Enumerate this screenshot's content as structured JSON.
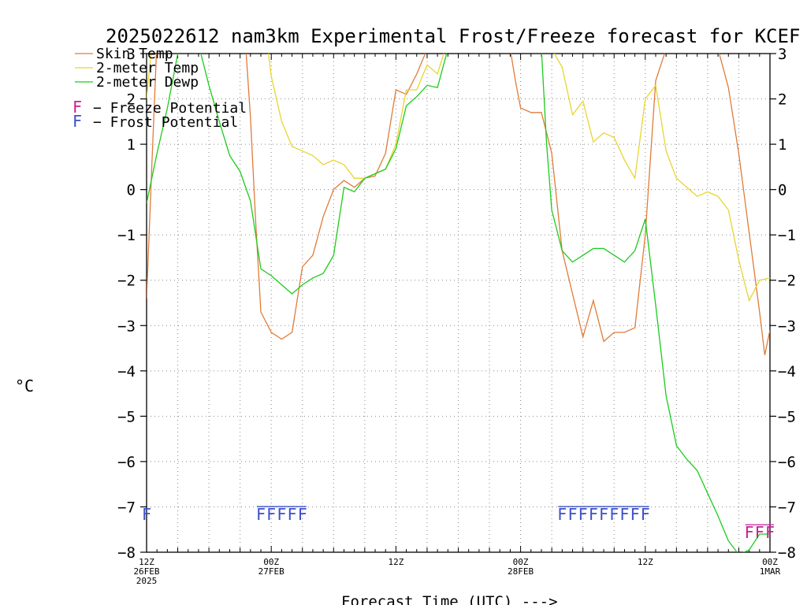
{
  "chart_data": {
    "type": "line",
    "title": "2025022612 nam3km Experimental Frost/Freeze forecast for KCEF",
    "xlabel": "Forecast Time (UTC) --->",
    "ylabel": "°C",
    "ylim": [
      -8,
      3
    ],
    "yticks": [
      3,
      2,
      1,
      0,
      -1,
      -2,
      -3,
      -4,
      -5,
      -6,
      -7,
      -8
    ],
    "xlim": [
      "2025-02-26 12Z",
      "2025-03-01 00Z"
    ],
    "x_hours_from_start": [
      0,
      60
    ],
    "xticks": [
      {
        "hour": 0,
        "lines": [
          "12Z",
          "26FEB",
          "2025"
        ]
      },
      {
        "hour": 12,
        "lines": [
          "00Z",
          "27FEB"
        ]
      },
      {
        "hour": 24,
        "lines": [
          "12Z"
        ]
      },
      {
        "hour": 36,
        "lines": [
          "00Z",
          "28FEB"
        ]
      },
      {
        "hour": 48,
        "lines": [
          "12Z"
        ]
      },
      {
        "hour": 60,
        "lines": [
          "00Z",
          "1MAR"
        ]
      }
    ],
    "grid": true,
    "legend_position": "top-left",
    "series": [
      {
        "name": "Skin Temp",
        "color": "#e07b39",
        "points": [
          [
            0,
            -2.4
          ],
          [
            0.5,
            0.5
          ],
          [
            1,
            3.3
          ],
          [
            9.5,
            3.3
          ],
          [
            10,
            1.6
          ],
          [
            10.5,
            -0.7
          ],
          [
            11,
            -2.7
          ],
          [
            12,
            -3.15
          ],
          [
            13,
            -3.3
          ],
          [
            14,
            -3.15
          ],
          [
            15,
            -1.7
          ],
          [
            16,
            -1.45
          ],
          [
            17,
            -0.6
          ],
          [
            18,
            0
          ],
          [
            19,
            0.2
          ],
          [
            20,
            0.05
          ],
          [
            21,
            0.25
          ],
          [
            22,
            0.3
          ],
          [
            23,
            0.8
          ],
          [
            24,
            2.2
          ],
          [
            25,
            2.1
          ],
          [
            26,
            2.55
          ],
          [
            27,
            3.1
          ],
          [
            35,
            3.1
          ],
          [
            35.5,
            2.4
          ],
          [
            36,
            1.8
          ],
          [
            37,
            1.7
          ],
          [
            38,
            1.7
          ],
          [
            39,
            0.8
          ],
          [
            40,
            -1.35
          ],
          [
            41,
            -2.3
          ],
          [
            42,
            -3.25
          ],
          [
            43,
            -2.45
          ],
          [
            44,
            -3.35
          ],
          [
            45,
            -3.15
          ],
          [
            46,
            -3.15
          ],
          [
            47,
            -3.05
          ],
          [
            48,
            -1.0
          ],
          [
            49,
            2.4
          ],
          [
            50,
            3.1
          ],
          [
            55,
            3.1
          ],
          [
            56,
            2.25
          ],
          [
            57,
            0.8
          ],
          [
            58,
            -0.95
          ],
          [
            59,
            -2.7
          ],
          [
            59.5,
            -3.65
          ],
          [
            60,
            -3.1
          ]
        ]
      },
      {
        "name": "2-meter Temp",
        "color": "#e8d530",
        "points": [
          [
            0,
            2.0
          ],
          [
            0.5,
            3.2
          ],
          [
            1,
            3.4
          ],
          [
            11.5,
            3.4
          ],
          [
            12,
            2.5
          ],
          [
            13,
            1.5
          ],
          [
            14,
            0.95
          ],
          [
            15,
            0.85
          ],
          [
            16,
            0.75
          ],
          [
            17,
            0.55
          ],
          [
            18,
            0.65
          ],
          [
            19,
            0.55
          ],
          [
            20,
            0.25
          ],
          [
            21,
            0.25
          ],
          [
            22,
            0.35
          ],
          [
            23,
            0.45
          ],
          [
            24,
            1.0
          ],
          [
            25,
            2.2
          ],
          [
            26,
            2.2
          ],
          [
            27,
            2.75
          ],
          [
            28,
            2.55
          ],
          [
            29,
            3.3
          ],
          [
            38.5,
            3.3
          ],
          [
            39,
            3.1
          ],
          [
            40,
            2.7
          ],
          [
            41,
            1.65
          ],
          [
            42,
            1.95
          ],
          [
            43,
            1.05
          ],
          [
            44,
            1.25
          ],
          [
            45,
            1.15
          ],
          [
            46,
            0.65
          ],
          [
            47,
            0.25
          ],
          [
            48,
            2.0
          ],
          [
            49,
            2.3
          ],
          [
            50,
            0.85
          ],
          [
            51,
            0.25
          ],
          [
            52,
            0.05
          ],
          [
            53,
            -0.15
          ],
          [
            54,
            -0.05
          ],
          [
            55,
            -0.15
          ],
          [
            56,
            -0.45
          ],
          [
            57,
            -1.55
          ],
          [
            58,
            -2.45
          ],
          [
            59,
            -2.0
          ],
          [
            60,
            -1.95
          ]
        ]
      },
      {
        "name": "2-meter Dewp",
        "color": "#1ccc1c",
        "points": [
          [
            0,
            -0.3
          ],
          [
            1,
            0.8
          ],
          [
            2,
            1.8
          ],
          [
            3,
            3.0
          ],
          [
            4,
            3.2
          ],
          [
            5,
            3.2
          ],
          [
            6,
            2.3
          ],
          [
            7,
            1.5
          ],
          [
            8,
            0.75
          ],
          [
            9,
            0.4
          ],
          [
            10,
            -0.25
          ],
          [
            11,
            -1.75
          ],
          [
            12,
            -1.9
          ],
          [
            13,
            -2.1
          ],
          [
            14,
            -2.3
          ],
          [
            15,
            -2.1
          ],
          [
            16,
            -1.95
          ],
          [
            17,
            -1.85
          ],
          [
            18,
            -1.45
          ],
          [
            19,
            0.05
          ],
          [
            20,
            -0.05
          ],
          [
            21,
            0.25
          ],
          [
            22,
            0.35
          ],
          [
            23,
            0.45
          ],
          [
            24,
            0.9
          ],
          [
            25,
            1.85
          ],
          [
            26,
            2.05
          ],
          [
            27,
            2.3
          ],
          [
            28,
            2.25
          ],
          [
            29,
            3.1
          ],
          [
            38,
            3.1
          ],
          [
            38.5,
            1.0
          ],
          [
            39,
            -0.45
          ],
          [
            40,
            -1.35
          ],
          [
            41,
            -1.6
          ],
          [
            42,
            -1.45
          ],
          [
            43,
            -1.3
          ],
          [
            44,
            -1.3
          ],
          [
            45,
            -1.45
          ],
          [
            46,
            -1.6
          ],
          [
            47,
            -1.35
          ],
          [
            48,
            -0.65
          ],
          [
            49,
            -2.55
          ],
          [
            50,
            -4.55
          ],
          [
            51,
            -5.65
          ],
          [
            52,
            -5.95
          ],
          [
            53,
            -6.2
          ],
          [
            54,
            -6.7
          ],
          [
            55,
            -7.2
          ],
          [
            56,
            -7.75
          ],
          [
            57,
            -8.05
          ],
          [
            58,
            -7.95
          ],
          [
            59,
            -7.6
          ],
          [
            60,
            -7.6
          ]
        ]
      }
    ],
    "flags_legend": [
      {
        "letter": "F",
        "label": "Freeze Potential",
        "color": "#c81e96"
      },
      {
        "letter": "F",
        "label": "Frost Potential",
        "color": "#3c50c8"
      }
    ],
    "frost_flags": {
      "color": "#3c50c8",
      "level": -7.15,
      "hours": [
        0,
        11,
        12,
        13,
        14,
        15,
        40,
        41,
        42,
        43,
        44,
        45,
        46,
        47,
        48
      ]
    },
    "freeze_flags": {
      "color": "#c81e96",
      "level": -7.55,
      "hours": [
        58,
        59,
        60
      ]
    }
  }
}
